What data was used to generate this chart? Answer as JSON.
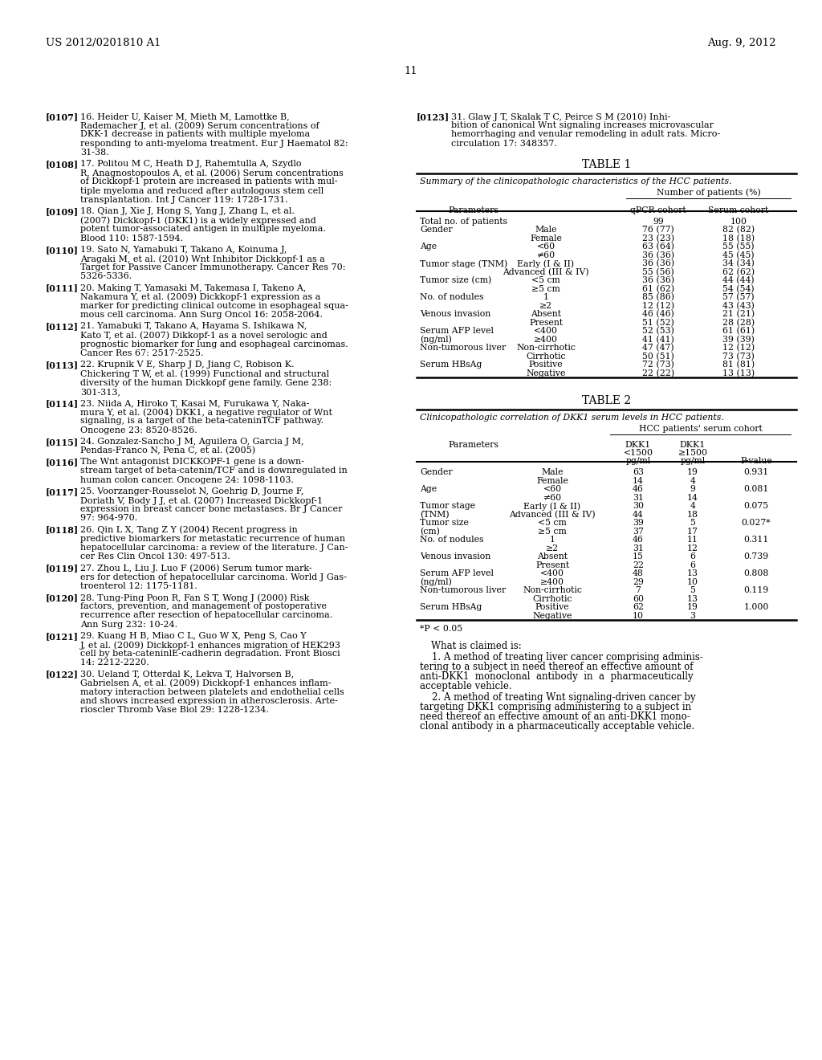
{
  "background_color": "#ffffff",
  "header_left": "US 2012/0201810 A1",
  "header_right": "Aug. 9, 2012",
  "page_number": "11",
  "left_refs": [
    {
      "tag": "[0107]",
      "lines": [
        "16. Heider U, Kaiser M, Mieth M, Lamottke B,",
        "Rademacher J, et al. (2009) Serum concentrations of",
        "DKK-1 decrease in patients with multiple myeloma",
        "responding to anti-myeloma treatment. Eur J Haematol 82:",
        "31-38."
      ]
    },
    {
      "tag": "[0108]",
      "lines": [
        "17. Politou M C, Heath D J, Rahemtulla A, Szydlo",
        "R, Anagnostopoulos A, et al. (2006) Serum concentrations",
        "of Dickkopf-1 protein are increased in patients with mul-",
        "tiple myeloma and reduced after autologous stem cell",
        "transplantation. Int J Cancer 119: 1728-1731."
      ]
    },
    {
      "tag": "[0109]",
      "lines": [
        "18. Qian J, Xie J, Hong S, Yang J, Zhang L, et al.",
        "(2007) Dickkopf-1 (DKK1) is a widely expressed and",
        "potent tumor-associated antigen in multiple myeloma.",
        "Blood 110: 1587-1594."
      ]
    },
    {
      "tag": "[0110]",
      "lines": [
        "19. Sato N, Yamabuki T, Takano A, Koinuma J,",
        "Aragaki M, et al. (2010) Wnt Inhibitor Dickkopf-1 as a",
        "Target for Passive Cancer Immunotherapy. Cancer Res 70:",
        "5326-5336."
      ]
    },
    {
      "tag": "[0111]",
      "lines": [
        "20. Making T, Yamasaki M, Takemasa I, Takeno A,",
        "Nakamura Y, et al. (2009) Dickkopf-1 expression as a",
        "marker for predicting clinical outcome in esophageal squa-",
        "mous cell carcinoma. Ann Surg Oncol 16: 2058-2064."
      ]
    },
    {
      "tag": "[0112]",
      "lines": [
        "21. Yamabuki T, Takano A, Hayama S. Ishikawa N,",
        "Kato T, et al. (2007) Dikkopf-1 as a novel serologic and",
        "prognostic biomarker for lung and esophageal carcinomas.",
        "Cancer Res 67: 2517-2525."
      ]
    },
    {
      "tag": "[0113]",
      "lines": [
        "22. Krupnik V E, Sharp J D, Jiang C, Robison K.",
        "Chickering T W, et al. (1999) Functional and structural",
        "diversity of the human Dickkopf gene family. Gene 238:",
        "301-313,"
      ]
    },
    {
      "tag": "[0114]",
      "lines": [
        "23. Niida A, Hiroko T, Kasai M, Furukawa Y, Naka-",
        "mura Y, et al. (2004) DKK1, a negative regulator of Wnt",
        "signaling, is a target of the beta-cateninTCF pathway.",
        "Oncogene 23: 8520-8526."
      ]
    },
    {
      "tag": "[0115]",
      "lines": [
        "24. Gonzalez-Sancho J M, Aguilera O, Garcia J M,",
        "Pendas-Franco N, Pena C, et al. (2005)"
      ]
    },
    {
      "tag": "[0116]",
      "lines": [
        "The Wnt antagonist DICKKOPF-1 gene is a down-",
        "stream target of beta-catenin/TCF and is downregulated in",
        "human colon cancer. Oncogene 24: 1098-1103."
      ]
    },
    {
      "tag": "[0117]",
      "lines": [
        "25. Voorzanger-Rousselot N, Goehrig D, Journe F,",
        "Doriath V, Body J J, et al. (2007) Increased Dickkopf-1",
        "expression in breast cancer bone metastases. Br J Cancer",
        "97: 964-970."
      ]
    },
    {
      "tag": "[0118]",
      "lines": [
        "26. Qin L X, Tang Z Y (2004) Recent progress in",
        "predictive biomarkers for metastatic recurrence of human",
        "hepatocellular carcinoma: a review of the literature. J Can-",
        "cer Res Clin Oncol 130: 497-513."
      ]
    },
    {
      "tag": "[0119]",
      "lines": [
        "27. Zhou L, Liu J. Luo F (2006) Serum tumor mark-",
        "ers for detection of hepatocellular carcinoma. World J Gas-",
        "troenterol 12: 1175-1181."
      ]
    },
    {
      "tag": "[0120]",
      "lines": [
        "28. Tung-Ping Poon R, Fan S T, Wong J (2000) Risk",
        "factors, prevention, and management of postoperative",
        "recurrence after resection of hepatocellular carcinoma.",
        "Ann Surg 232: 10-24."
      ]
    },
    {
      "tag": "[0121]",
      "lines": [
        "29. Kuang H B, Miao C L, Guo W X, Peng S, Cao Y",
        "J, et al. (2009) Dickkopf-1 enhances migration of HEK293",
        "cell by beta-cateninlE-cadherin degradation. Front Biosci",
        "14: 2212-2220."
      ]
    },
    {
      "tag": "[0122]",
      "lines": [
        "30. Ueland T, Otterdal K, Lekva T, Halvorsen B,",
        "Gabrielsen A, et al. (2009) Dickkopf-1 enhances inflam-",
        "matory interaction between platelets and endothelial cells",
        "and shows increased expression in atherosclerosis. Arte-",
        "rioscler Thromb Vase Biol 29: 1228-1234."
      ]
    }
  ],
  "right_refs": [
    {
      "tag": "[0123]",
      "lines": [
        "31. Glaw J T, Skalak T C, Peirce S M (2010) Inhi-",
        "bition of canonical Wnt signaling increases microvascular",
        "hemorrhaging and venular remodeling in adult rats. Micro-",
        "circulation 17: 348357."
      ]
    }
  ],
  "table1_title": "TABLE 1",
  "table1_subtitle": "Summary of the clinicopathologic characteristics of the HCC patients.",
  "table1_col_header": "Number of patients (%)",
  "table1_data": [
    [
      "Total no. of patients",
      "",
      "99",
      "100"
    ],
    [
      "Gender",
      "Male",
      "76 (77)",
      "82 (82)"
    ],
    [
      "",
      "Female",
      "23 (23)",
      "18 (18)"
    ],
    [
      "Age",
      "<60",
      "63 (64)",
      "55 (55)"
    ],
    [
      "",
      "≠60",
      "36 (36)",
      "45 (45)"
    ],
    [
      "Tumor stage (TNM)",
      "Early (I & II)",
      "36 (36)",
      "34 (34)"
    ],
    [
      "",
      "Advanced (III & IV)",
      "55 (56)",
      "62 (62)"
    ],
    [
      "Tumor size (cm)",
      "<5 cm",
      "36 (36)",
      "44 (44)"
    ],
    [
      "",
      "≥5 cm",
      "61 (62)",
      "54 (54)"
    ],
    [
      "No. of nodules",
      "1",
      "85 (86)",
      "57 (57)"
    ],
    [
      "",
      "≥2",
      "12 (12)",
      "43 (43)"
    ],
    [
      "Venous invasion",
      "Absent",
      "46 (46)",
      "21 (21)"
    ],
    [
      "",
      "Present",
      "51 (52)",
      "28 (28)"
    ],
    [
      "Serum AFP level",
      "<400",
      "52 (53)",
      "61 (61)"
    ],
    [
      "(ng/ml)",
      "≥400",
      "41 (41)",
      "39 (39)"
    ],
    [
      "Non-tumorous liver",
      "Non-cirrhotic",
      "47 (47)",
      "12 (12)"
    ],
    [
      "",
      "Cirrhotic",
      "50 (51)",
      "73 (73)"
    ],
    [
      "Serum HBsAg",
      "Positive",
      "72 (73)",
      "81 (81)"
    ],
    [
      "",
      "Negative",
      "22 (22)",
      "13 (13)"
    ]
  ],
  "table2_title": "TABLE 2",
  "table2_subtitle": "Clinicopathologic correlation of DKK1 serum levels in HCC patients.",
  "table2_col_group": "HCC patients' serum cohort",
  "table2_data": [
    [
      "Gender",
      "Male",
      "63",
      "19",
      "0.931"
    ],
    [
      "",
      "Female",
      "14",
      "4",
      ""
    ],
    [
      "Age",
      "<60",
      "46",
      "9",
      "0.081"
    ],
    [
      "",
      "≠60",
      "31",
      "14",
      ""
    ],
    [
      "Tumor stage",
      "Early (I & II)",
      "30",
      "4",
      "0.075"
    ],
    [
      "(TNM)",
      "Advanced (III & IV)",
      "44",
      "18",
      ""
    ],
    [
      "Tumor size",
      "<5 cm",
      "39",
      "5",
      "0.027*"
    ],
    [
      "(cm)",
      "≥5 cm",
      "37",
      "17",
      ""
    ],
    [
      "No. of nodules",
      "1",
      "46",
      "11",
      "0.311"
    ],
    [
      "",
      "≥2",
      "31",
      "12",
      ""
    ],
    [
      "Venous invasion",
      "Absent",
      "15",
      "6",
      "0.739"
    ],
    [
      "",
      "Present",
      "22",
      "6",
      ""
    ],
    [
      "Serum AFP level",
      "<400",
      "48",
      "13",
      "0.808"
    ],
    [
      "(ng/ml)",
      "≥400",
      "29",
      "10",
      ""
    ],
    [
      "Non-tumorous liver",
      "Non-cirrhotic",
      "7",
      "5",
      "0.119"
    ],
    [
      "",
      "Cirrhotic",
      "60",
      "13",
      ""
    ],
    [
      "Serum HBsAg",
      "Positive",
      "62",
      "19",
      "1.000"
    ],
    [
      "",
      "Negative",
      "10",
      "3",
      ""
    ]
  ],
  "table2_footnote": "*P < 0.05",
  "claims_header": "What is claimed is:",
  "claim1_lines": [
    "    1. A method of treating liver cancer comprising adminis-",
    "tering to a subject in need thereof an effective amount of",
    "anti-DKK1  monoclonal  antibody  in  a  pharmaceutically",
    "acceptable vehicle."
  ],
  "claim2_lines": [
    "    2. A method of treating Wnt signaling-driven cancer by",
    "targeting DKK1 comprising administering to a subject in",
    "need thereof an effective amount of an anti-DKK1 mono-",
    "clonal antibody in a pharmaceutically acceptable vehicle."
  ]
}
